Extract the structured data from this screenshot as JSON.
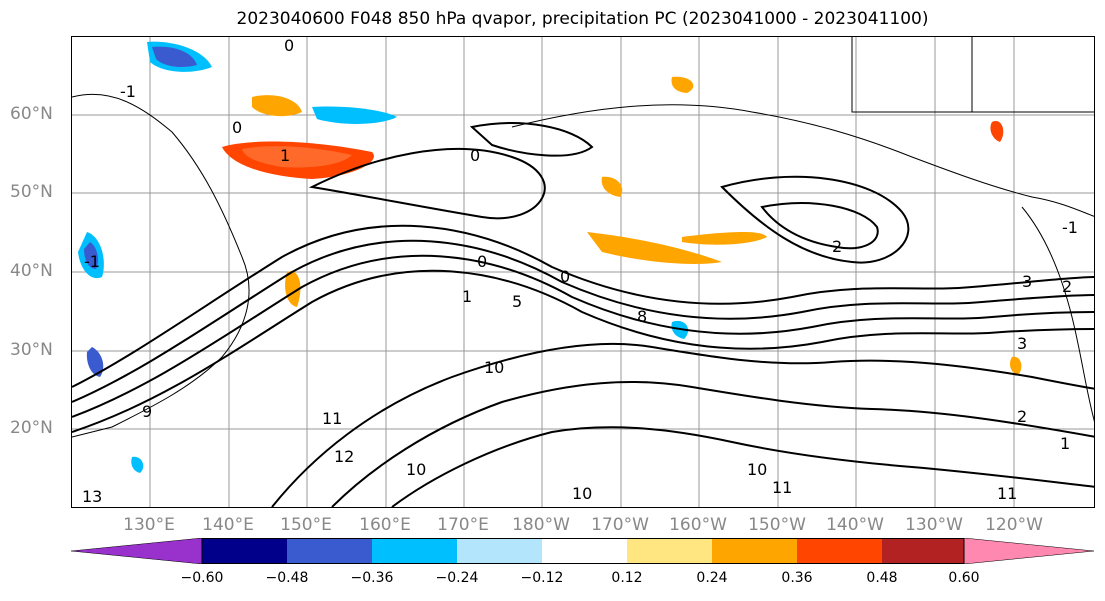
{
  "title": "2023040600 F048 850 hPa qvapor, precipitation PC (2023041000 - 2023041100)",
  "lat_labels": [
    "60°N",
    "50°N",
    "40°N",
    "30°N",
    "20°N"
  ],
  "lon_labels": [
    "130°E",
    "140°E",
    "150°E",
    "160°E",
    "170°E",
    "180°W",
    "170°W",
    "160°W",
    "150°W",
    "140°W",
    "130°W",
    "120°W"
  ],
  "colorbar": {
    "colors": [
      "#9932cc",
      "#00008b",
      "#3a5bd0",
      "#00bfff",
      "#b3e5fc",
      "#ffffff",
      "#ffe680",
      "#ffa500",
      "#ff4500",
      "#b22222",
      "#ff88b0"
    ],
    "tick_labels": [
      "−0.60",
      "−0.48",
      "−0.36",
      "−0.24",
      "−0.12",
      "0.12",
      "0.24",
      "0.36",
      "0.48",
      "0.60"
    ]
  },
  "contour_labels": [
    "0",
    "1",
    "0",
    "0",
    "-1",
    "0",
    "2",
    "1",
    "5",
    "8",
    "0",
    "3",
    "2",
    "1",
    "-1",
    "2",
    "-1",
    "10",
    "10",
    "10",
    "11",
    "11",
    "12",
    "13",
    "10",
    "3",
    "9",
    "11"
  ]
}
